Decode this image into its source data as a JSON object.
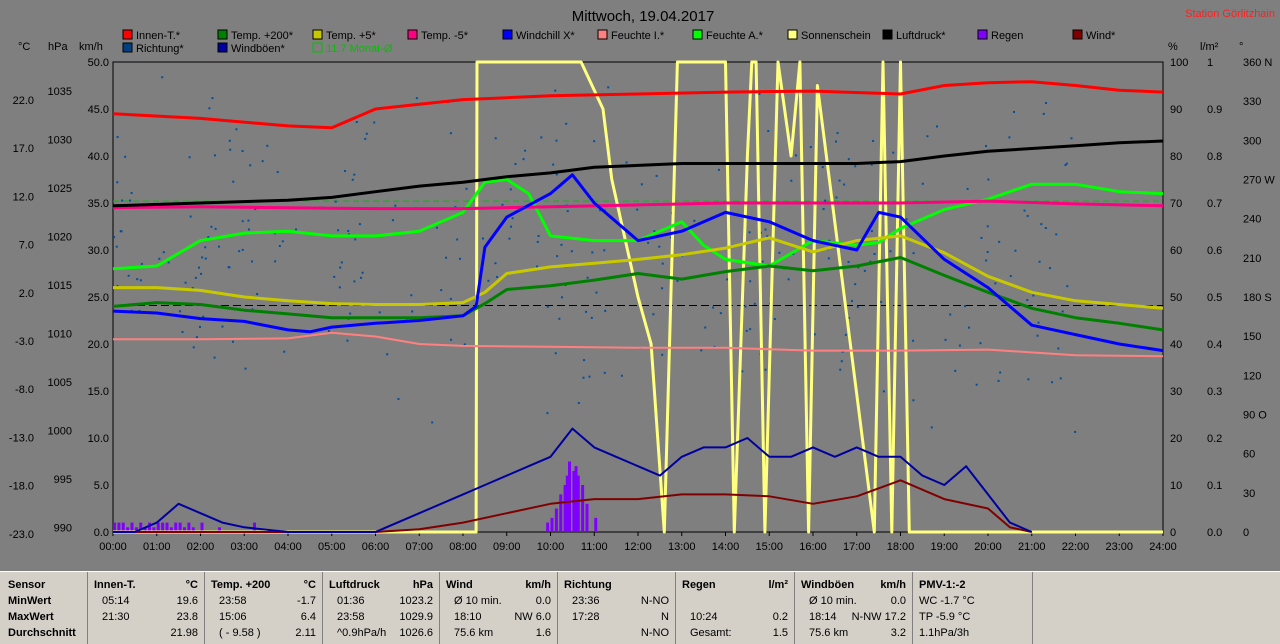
{
  "title": "Mittwoch, 19.04.2017",
  "station": "Station Görlitzhain",
  "colors": {
    "bg": "#7f7f7f",
    "innen": "#ff0000",
    "temp200": "#008000",
    "temp5": "#c8c800",
    "tempm5": "#ff0080",
    "windchill": "#0000ff",
    "feuchteI": "#ff8080",
    "feuchteA": "#00ff00",
    "sonne": "#ffff80",
    "luftdruck": "#000000",
    "regen": "#8000ff",
    "wind": "#800000",
    "richtung": "#0050a0",
    "windboen": "#0000a0",
    "monat": "#00c000"
  },
  "legend": [
    {
      "label": "Innen-T.*",
      "color": "#ff0000"
    },
    {
      "label": "Temp. +200*",
      "color": "#008000"
    },
    {
      "label": "Temp. +5*",
      "color": "#c8c800"
    },
    {
      "label": "Temp. -5*",
      "color": "#ff0080"
    },
    {
      "label": "Windchill X*",
      "color": "#0000ff"
    },
    {
      "label": "Feuchte I.*",
      "color": "#ff8080"
    },
    {
      "label": "Feuchte A.*",
      "color": "#00ff00"
    },
    {
      "label": "Sonnenschein",
      "color": "#ffff80"
    },
    {
      "label": "Luftdruck*",
      "color": "#000000"
    },
    {
      "label": "Regen",
      "color": "#8000ff"
    },
    {
      "label": "Wind*",
      "color": "#800000"
    },
    {
      "label": "Richtung*",
      "color": "#004080"
    },
    {
      "label": "Windböen*",
      "color": "#0000a0"
    },
    {
      "label": "11.7 Monat-Ø",
      "color": "#00c000"
    }
  ],
  "axes": {
    "unit_c": "°C",
    "unit_hpa": "hPa",
    "unit_kmh": "km/h",
    "unit_pct": "%",
    "unit_lm2": "l/m²",
    "unit_deg": "°",
    "c_ticks": [
      "22.0",
      "17.0",
      "12.0",
      "7.0",
      "2.0",
      "-3.0",
      "-8.0",
      "-13.0",
      "-18.0",
      "-23.0"
    ],
    "hpa_ticks": [
      "1035",
      "1030",
      "1025",
      "1020",
      "1015",
      "1010",
      "1005",
      "1000",
      "995",
      "990"
    ],
    "kmh_ticks": [
      "50.0",
      "45.0",
      "40.0",
      "35.0",
      "30.0",
      "25.0",
      "20.0",
      "15.0",
      "10.0",
      "5.0",
      "0.0"
    ],
    "pct_ticks": [
      "100",
      "90",
      "80",
      "70",
      "60",
      "50",
      "40",
      "30",
      "20",
      "10",
      "0"
    ],
    "lm2_ticks": [
      "1",
      "0.9",
      "0.8",
      "0.7",
      "0.6",
      "0.5",
      "0.4",
      "0.3",
      "0.2",
      "0.1",
      "0.0"
    ],
    "deg_ticks": [
      "360 N",
      "330",
      "300",
      "270 W",
      "240",
      "210",
      "180 S",
      "150",
      "120",
      "90 O",
      "60",
      "30",
      "0"
    ],
    "x_ticks": [
      "00:00",
      "01:00",
      "02:00",
      "03:00",
      "04:00",
      "05:00",
      "06:00",
      "07:00",
      "08:00",
      "09:00",
      "10:00",
      "11:00",
      "12:00",
      "13:00",
      "14:00",
      "15:00",
      "16:00",
      "17:00",
      "18:00",
      "19:00",
      "20:00",
      "21:00",
      "22:00",
      "23:00",
      "24:00"
    ]
  },
  "chart_data": {
    "type": "line",
    "title": "Mittwoch, 19.04.2017",
    "x_unit": "hour",
    "xlim": [
      0,
      24
    ],
    "ylim_kmh": [
      0,
      50
    ],
    "series": [
      {
        "name": "Innen-T.*",
        "unit": "km/h",
        "x": [
          0,
          2,
          4,
          5,
          6,
          7,
          8,
          9,
          10,
          12,
          14,
          16,
          18,
          19,
          20,
          21,
          22,
          23,
          24
        ],
        "values": [
          44.5,
          44,
          43.2,
          43,
          45,
          45.5,
          46,
          46.2,
          46.4,
          46.6,
          46.8,
          46.9,
          46.6,
          47.5,
          47.8,
          47.9,
          47.5,
          47,
          46.8
        ]
      },
      {
        "name": "Temp. +200*",
        "unit": "km/h",
        "x": [
          0,
          1,
          2,
          3,
          4,
          5,
          6,
          7,
          8,
          8.5,
          9,
          10,
          11,
          12,
          13,
          14,
          15,
          16,
          17,
          18,
          19,
          20,
          21,
          22,
          23,
          24
        ],
        "values": [
          24,
          24.4,
          24.2,
          23.6,
          23.2,
          22.8,
          22.8,
          22.8,
          23,
          24.3,
          25.8,
          26.2,
          26.8,
          27.5,
          26.9,
          27.7,
          28.3,
          27.8,
          28.3,
          29.2,
          27.3,
          25.5,
          23.8,
          22.8,
          22.2,
          21.5
        ]
      },
      {
        "name": "Temp. +5*",
        "unit": "km/h",
        "x": [
          0,
          1,
          2,
          3,
          4,
          5,
          6,
          7,
          8,
          8.5,
          9,
          10,
          11,
          12,
          13,
          14,
          15,
          16,
          17,
          18,
          19,
          20,
          21,
          22,
          23,
          24
        ],
        "values": [
          26,
          26,
          25.7,
          25,
          24.6,
          24.3,
          24.2,
          24.2,
          24.4,
          25.5,
          27.5,
          28.2,
          28.6,
          29,
          29.5,
          30.2,
          31.3,
          29.8,
          31,
          31.5,
          29.7,
          27.2,
          25.5,
          24.6,
          24.2,
          23.8
        ]
      },
      {
        "name": "Temp. -5*",
        "unit": "km/h",
        "x": [
          0,
          2,
          4,
          6,
          8,
          10,
          12,
          14,
          16,
          18,
          20,
          22,
          24
        ],
        "values": [
          34.5,
          34.6,
          34.5,
          34.4,
          34.4,
          34.6,
          34.8,
          35,
          35,
          35,
          35.2,
          34.9,
          34.7
        ]
      },
      {
        "name": "Windchill X*",
        "unit": "km/h",
        "x": [
          0,
          1,
          2,
          3,
          4,
          4.5,
          5,
          6,
          7,
          8,
          8.3,
          8.5,
          9,
          10,
          10.5,
          11,
          12,
          13,
          14,
          15,
          16,
          17,
          17.5,
          18,
          19,
          20,
          21,
          22,
          23,
          24
        ],
        "values": [
          23.5,
          23.3,
          22.7,
          22.4,
          21.5,
          21.3,
          21.8,
          22.2,
          22.5,
          23,
          24,
          30.3,
          33.5,
          36,
          38,
          35,
          31,
          32,
          34,
          33,
          31,
          30,
          34,
          33.5,
          29,
          26,
          22,
          21,
          20,
          19.3
        ]
      },
      {
        "name": "Feuchte I.*",
        "unit": "km/h",
        "x": [
          0,
          2,
          4,
          5,
          6,
          7,
          8,
          10,
          12,
          14,
          16,
          18,
          20,
          22,
          24
        ],
        "values": [
          20.5,
          20.5,
          20.6,
          21.2,
          20.8,
          20,
          19.8,
          19.7,
          19.6,
          19.6,
          19.3,
          19.3,
          19.4,
          18.8,
          18.7
        ]
      },
      {
        "name": "Feuchte A.*",
        "unit": "km/h",
        "x": [
          0,
          1,
          2,
          3,
          4,
          5,
          6,
          7,
          8,
          8.5,
          9,
          9.5,
          10,
          11,
          12,
          13,
          13.5,
          14,
          15,
          16,
          17,
          17.5,
          18,
          19,
          20,
          21,
          22,
          23,
          24
        ],
        "values": [
          28,
          28.3,
          31,
          31.8,
          32,
          31.5,
          31.5,
          32,
          34,
          37.2,
          37.5,
          36,
          31.5,
          31,
          31,
          33,
          30.5,
          29,
          28.3,
          31,
          30.5,
          30.8,
          32.3,
          34.3,
          35.4,
          37,
          37,
          36.2,
          36
        ]
      },
      {
        "name": "Luftdruck*",
        "unit": "km/h",
        "x": [
          0,
          2,
          4,
          5,
          6,
          7,
          8,
          9,
          10,
          11,
          12,
          13,
          14,
          15,
          16,
          17,
          18,
          19,
          20,
          21,
          22,
          23,
          24
        ],
        "values": [
          34.7,
          35,
          35.3,
          35.6,
          36.2,
          36.8,
          37.2,
          37.8,
          38.2,
          38.8,
          39,
          39.2,
          39.2,
          39.2,
          39.2,
          39.2,
          39.4,
          40,
          40.5,
          40.8,
          41.1,
          41.4,
          41.6
        ]
      },
      {
        "name": "Wind*",
        "unit": "km/h",
        "x": [
          0,
          6,
          7,
          8,
          9,
          10,
          11,
          12,
          13,
          14,
          15,
          16,
          17,
          18,
          19,
          20,
          20.5,
          21
        ],
        "values": [
          0,
          0,
          0.3,
          1,
          2,
          3,
          3.5,
          3.5,
          4,
          4,
          3.8,
          3,
          3.8,
          5.5,
          3.5,
          2.5,
          0.5,
          0
        ]
      },
      {
        "name": "Windböen*",
        "unit": "km/h",
        "x": [
          0,
          0.5,
          1,
          1.5,
          2,
          2.5,
          3,
          4,
          6,
          7,
          8,
          8.5,
          9,
          9.5,
          10,
          10.5,
          11,
          11.5,
          12,
          12.5,
          13,
          13.5,
          14,
          14.5,
          15,
          15.5,
          16,
          16.5,
          17,
          17.5,
          18,
          18.5,
          19,
          19.5,
          20,
          20.5,
          21
        ],
        "values": [
          0,
          0,
          1,
          3,
          2,
          1,
          0.5,
          0,
          0,
          2,
          4,
          5,
          6,
          7,
          8,
          11,
          9,
          8,
          7,
          6,
          8,
          9,
          9,
          10,
          8,
          8,
          9,
          8,
          9,
          8,
          8,
          6,
          5,
          7,
          4,
          1,
          0
        ]
      },
      {
        "name": "Sonnenschein",
        "unit": "%",
        "x": [
          0,
          8.3,
          8.32,
          10.3,
          10.7,
          11.2,
          11.4,
          12,
          12.3,
          12.6,
          12.9,
          13.1,
          13.4,
          14.0,
          14.2,
          14.5,
          14.6,
          14.7,
          14.9,
          15.2,
          15.5,
          15.7,
          15.9,
          16.1,
          17.4,
          17.6,
          17.8,
          18.0,
          18.2,
          24
        ],
        "values": [
          0,
          0,
          100,
          100,
          100,
          90,
          75,
          50,
          40,
          0,
          100,
          100,
          100,
          100,
          0,
          80,
          100,
          100,
          0,
          100,
          80,
          100,
          0,
          95,
          0,
          100,
          0,
          100,
          0,
          0
        ]
      }
    ],
    "regen_bars": {
      "unit": "l/m²",
      "x": [
        0.0,
        0.1,
        0.2,
        0.3,
        0.4,
        0.5,
        0.6,
        0.7,
        0.8,
        0.9,
        1.0,
        1.1,
        1.2,
        1.3,
        1.4,
        1.5,
        1.6,
        1.7,
        1.8,
        2.0,
        2.4,
        3.2,
        9.9,
        10.0,
        10.1,
        10.2,
        10.3,
        10.35,
        10.4,
        10.5,
        10.55,
        10.6,
        10.7,
        10.8,
        11.0
      ],
      "values": [
        0.02,
        0.02,
        0.02,
        0.01,
        0.02,
        0.01,
        0.02,
        0.01,
        0.02,
        0.01,
        0.02,
        0.02,
        0.02,
        0.01,
        0.02,
        0.02,
        0.01,
        0.02,
        0.01,
        0.02,
        0.01,
        0.02,
        0.02,
        0.03,
        0.05,
        0.08,
        0.1,
        0.12,
        0.15,
        0.13,
        0.14,
        0.12,
        0.1,
        0.06,
        0.03
      ]
    },
    "reference_line": {
      "label": "11.7 Monat-Ø",
      "value_kmh": 35.2
    },
    "zero_line_c": 24.1
  },
  "table": {
    "row_labels": [
      "Sensor",
      "MinWert",
      "MaxWert",
      "Durchschnitt"
    ],
    "columns": [
      {
        "title": "Innen-T.",
        "unit": "°C",
        "rows": [
          [
            "05:14",
            "19.6"
          ],
          [
            "21:30",
            "23.8"
          ],
          [
            "",
            "21.98"
          ]
        ]
      },
      {
        "title": "Temp. +200",
        "unit": "°C",
        "rows": [
          [
            "23:58",
            "-1.7"
          ],
          [
            "15:06",
            "6.4"
          ],
          [
            "( - 9.58 )",
            "2.11"
          ]
        ]
      },
      {
        "title": "Luftdruck",
        "unit": "hPa",
        "rows": [
          [
            "01:36",
            "1023.2"
          ],
          [
            "23:58",
            "1029.9"
          ],
          [
            "^0.9hPa/h",
            "1026.6"
          ]
        ]
      },
      {
        "title": "Wind",
        "unit": "km/h",
        "rows": [
          [
            "Ø 10 min.",
            "0.0"
          ],
          [
            "18:10",
            "NW 6.0"
          ],
          [
            "75.6 km",
            "1.6"
          ]
        ]
      },
      {
        "title": "Richtung",
        "unit": "",
        "rows": [
          [
            "23:36",
            "N-NO"
          ],
          [
            "17:28",
            "N"
          ],
          [
            "",
            "N-NO"
          ]
        ]
      },
      {
        "title": "Regen",
        "unit": "l/m²",
        "rows": [
          [
            "",
            ""
          ],
          [
            "10:24",
            "0.2"
          ],
          [
            "Gesamt:",
            "1.5"
          ]
        ]
      },
      {
        "title": "Windböen",
        "unit": "km/h",
        "rows": [
          [
            "Ø 10 min.",
            "0.0"
          ],
          [
            "18:14",
            "N-NW 17.2"
          ],
          [
            "75.6 km",
            "3.2"
          ]
        ]
      },
      {
        "title": "PMV-1:-2",
        "unit": "",
        "rows": [
          [
            "WC -1.7 °C",
            ""
          ],
          [
            "TP -5.9 °C",
            ""
          ],
          [
            "1.1hPa/3h",
            ""
          ]
        ]
      }
    ]
  }
}
